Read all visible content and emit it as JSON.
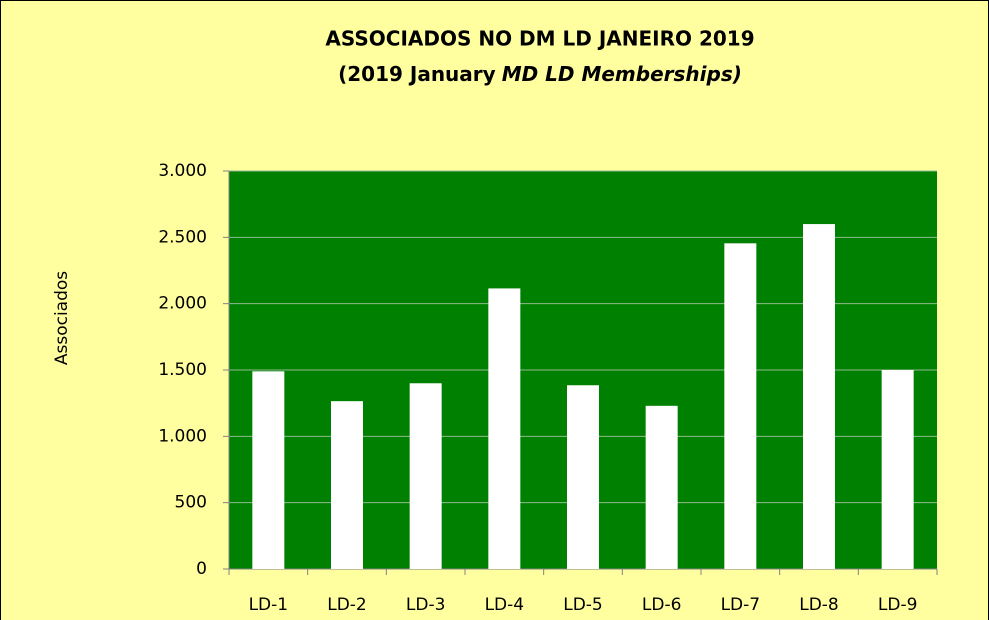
{
  "chart_data": {
    "type": "bar",
    "title": "ASSOCIADOS NO DM LD JANEIRO 2019",
    "subtitle": [
      "(2019 January",
      "MD LD Memberships)"
    ],
    "y_label": "Associados",
    "categories": [
      "LD-1",
      "LD-2",
      "LD-3",
      "LD-4",
      "LD-5",
      "LD-6",
      "LD-7",
      "LD-8",
      "LD-9"
    ],
    "values": [
      1490,
      1265,
      1400,
      2115,
      1385,
      1230,
      2455,
      2600,
      1500
    ],
    "color": "#ffffff",
    "plot_color": "#008000",
    "ylim": [
      0,
      3000
    ],
    "yticks": [
      0,
      500,
      {
        "value": 1000,
        "label": "1.000"
      },
      {
        "value": 1500,
        "label": "1.500"
      },
      {
        "value": 2000,
        "label": "2.000"
      },
      {
        "value": 2500,
        "label": "2.500"
      },
      {
        "value": 3000,
        "label": "3.000"
      }
    ],
    "grid": true
  }
}
